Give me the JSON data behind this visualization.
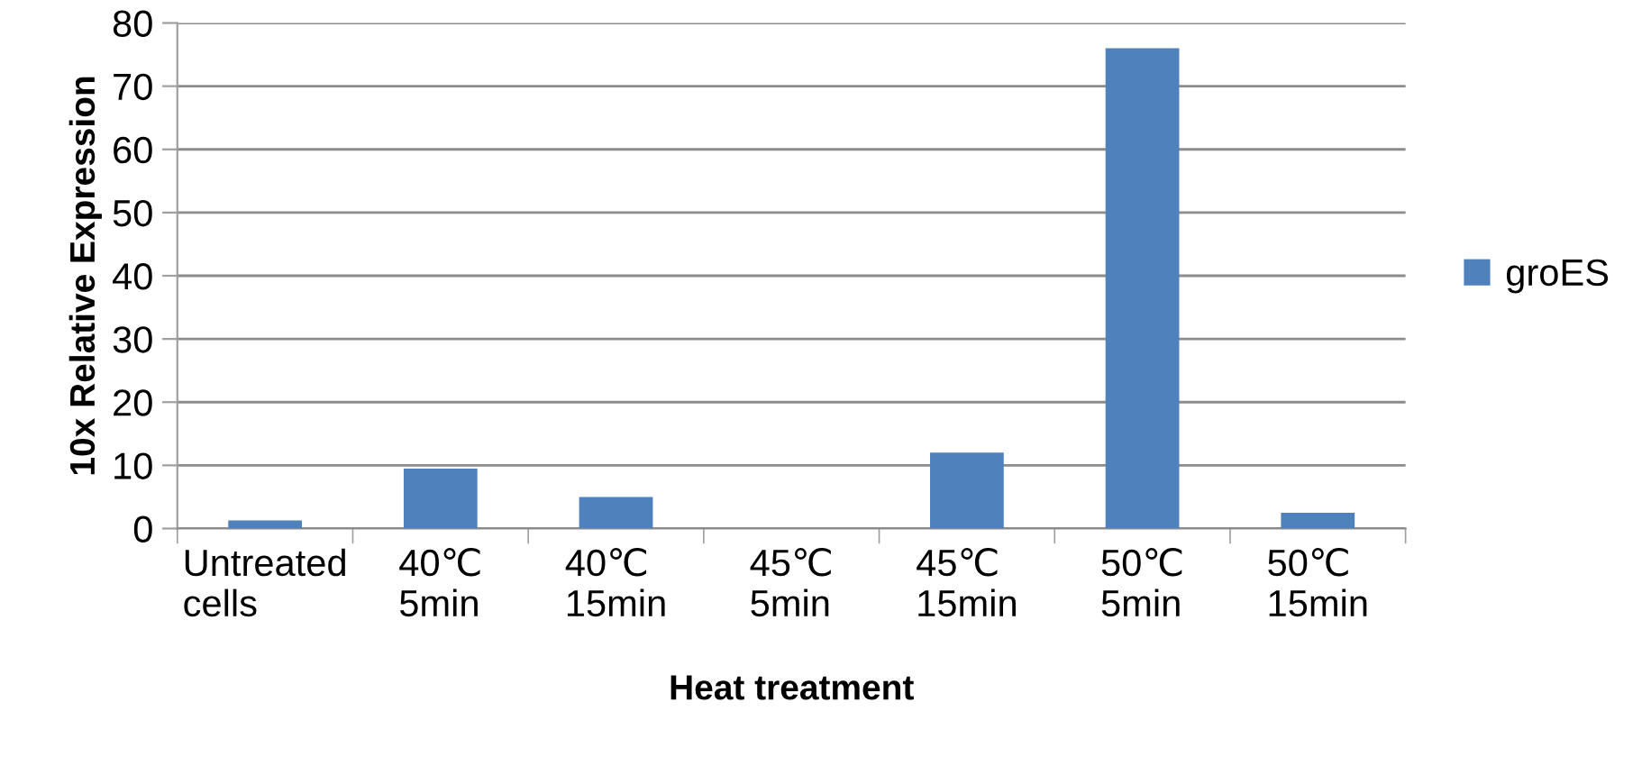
{
  "chart_data": {
    "type": "bar",
    "xlabel": "Heat treatment",
    "ylabel": "10x Relative Expression",
    "categories": [
      "Untreated\ncells",
      "40℃\n5min",
      "40℃\n15min",
      "45℃\n5min",
      "45℃\n15min",
      "50℃\n5min",
      "50℃\n15min"
    ],
    "series": [
      {
        "name": "groES",
        "color": "#4f81bd",
        "values": [
          1.3,
          9.5,
          5,
          0,
          12,
          76,
          2.5
        ]
      }
    ],
    "ylim": [
      0,
      80
    ],
    "yticks": [
      0,
      10,
      20,
      30,
      40,
      50,
      60,
      70,
      80
    ],
    "grid": "y",
    "legend": "right"
  }
}
